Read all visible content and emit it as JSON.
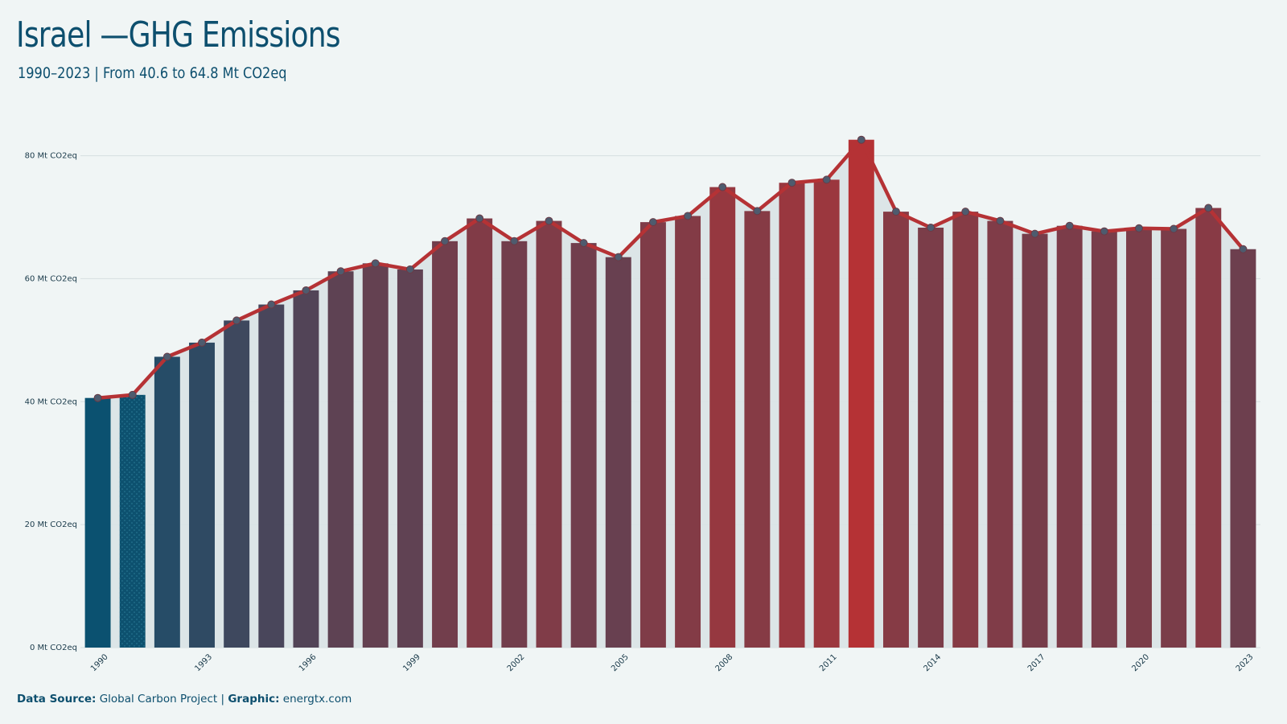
{
  "header": {
    "title": "Israel —GHG Emissions",
    "subtitle": "1990–2023 | From 40.6 to 64.8 Mt CO2eq"
  },
  "footer": {
    "source_label": "Data Source:",
    "source_value": "Global Carbon Project",
    "separator": "|",
    "graphic_label": "Graphic:",
    "graphic_value": "energtx.com"
  },
  "colors": {
    "background": "#f0f5f5",
    "start": "#0b5170",
    "end": "#b53235",
    "line": "#b53235",
    "marker": "#4e5b6e",
    "area": "#d9e3e6",
    "grid": "#d6dfe0"
  },
  "chart_data": {
    "type": "bar",
    "title": "Israel —GHG Emissions",
    "ylim": [
      0,
      84
    ],
    "yticks": [
      0,
      20,
      40,
      60,
      80
    ],
    "ytick_labels": [
      "0 Mt CO2eq",
      "20 Mt CO2eq",
      "40 Mt CO2eq",
      "60 Mt CO2eq",
      "80 Mt CO2eq"
    ],
    "xtick_labels": [
      "1990",
      "1993",
      "1996",
      "1999",
      "2002",
      "2005",
      "2008",
      "2011",
      "2014",
      "2017",
      "2020",
      "2023"
    ],
    "grid": true,
    "categories": [
      1990,
      1991,
      1992,
      1993,
      1994,
      1995,
      1996,
      1997,
      1998,
      1999,
      2000,
      2001,
      2002,
      2003,
      2004,
      2005,
      2006,
      2007,
      2008,
      2009,
      2010,
      2011,
      2012,
      2013,
      2014,
      2015,
      2016,
      2017,
      2018,
      2019,
      2020,
      2021,
      2022,
      2023
    ],
    "values": [
      40.6,
      41.1,
      47.3,
      49.6,
      53.2,
      55.8,
      58.1,
      61.2,
      62.5,
      61.5,
      66.1,
      69.8,
      66.1,
      69.4,
      65.8,
      63.5,
      69.2,
      70.2,
      74.9,
      71.0,
      75.6,
      76.1,
      82.6,
      70.9,
      68.3,
      70.9,
      69.4,
      67.3,
      68.6,
      67.7,
      68.2,
      68.1,
      71.5,
      64.8
    ]
  }
}
